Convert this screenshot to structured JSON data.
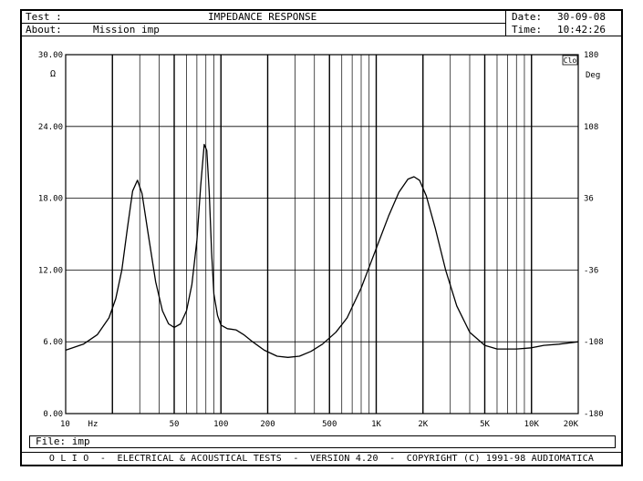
{
  "header": {
    "test_label": "Test :",
    "about_label": "About:",
    "about_value": "Mission imp",
    "title": "IMPEDANCE RESPONSE",
    "date_label": "Date:",
    "date_value": "30-09-08",
    "time_label": "Time:",
    "time_value": "10:42:26"
  },
  "footer": {
    "file_label": "File:",
    "file_value": "imp",
    "copyright": "O L I O  -  ELECTRICAL & ACOUSTICAL TESTS  -  VERSION 4.20  -  COPYRIGHT (C) 1991-98 AUDIOMATICA"
  },
  "chart_data": {
    "type": "line",
    "title": "IMPEDANCE RESPONSE",
    "x_scale": "log",
    "xlim": [
      10,
      20000
    ],
    "y_left": {
      "unit_label": "Ω",
      "ylim": [
        0,
        30
      ],
      "ticks": [
        "30.00",
        "24.00",
        "18.00",
        "12.00",
        "6.00",
        "0.00"
      ]
    },
    "y_right": {
      "unit_label": "Deg",
      "ylim": [
        -180,
        180
      ],
      "ticks": [
        "180",
        "108",
        "36",
        "-36",
        "-108",
        "-180"
      ]
    },
    "x_tick_labels": [
      {
        "x": 10,
        "label": "10"
      },
      {
        "x": 15,
        "label": "Hz"
      },
      {
        "x": 50,
        "label": "50"
      },
      {
        "x": 100,
        "label": "100"
      },
      {
        "x": 200,
        "label": "200"
      },
      {
        "x": 500,
        "label": "500"
      },
      {
        "x": 1000,
        "label": "1K"
      },
      {
        "x": 2000,
        "label": "2K"
      },
      {
        "x": 5000,
        "label": "5K"
      },
      {
        "x": 10000,
        "label": "10K"
      },
      {
        "x": 20000,
        "label": "20K"
      }
    ],
    "corner_label": "Clo",
    "grid": true,
    "series": [
      {
        "x": [
          10,
          13,
          16,
          19,
          21,
          23,
          25,
          27,
          29,
          31,
          34,
          38,
          42,
          46,
          50,
          55,
          60,
          65,
          70,
          74,
          78,
          81,
          84,
          87,
          90,
          95,
          100,
          110,
          125,
          140,
          160,
          190,
          230,
          270,
          320,
          380,
          450,
          550,
          650,
          800,
          1000,
          1200,
          1400,
          1600,
          1750,
          1900,
          2100,
          2400,
          2800,
          3300,
          4000,
          5000,
          6000,
          8000,
          10000,
          12000,
          15000,
          20000
        ],
        "y": [
          5.3,
          5.8,
          6.6,
          8.0,
          9.6,
          12.0,
          15.5,
          18.6,
          19.5,
          18.4,
          15.0,
          11.0,
          8.6,
          7.5,
          7.2,
          7.5,
          8.6,
          10.8,
          14.5,
          19.0,
          22.5,
          22.0,
          18.5,
          13.5,
          10.0,
          8.2,
          7.4,
          7.1,
          7.0,
          6.6,
          6.0,
          5.3,
          4.8,
          4.7,
          4.8,
          5.2,
          5.8,
          6.8,
          8.0,
          10.5,
          13.8,
          16.5,
          18.5,
          19.6,
          19.8,
          19.5,
          18.2,
          15.5,
          12.0,
          9.0,
          6.8,
          5.7,
          5.4,
          5.4,
          5.5,
          5.7,
          5.8,
          6.0
        ]
      }
    ]
  }
}
